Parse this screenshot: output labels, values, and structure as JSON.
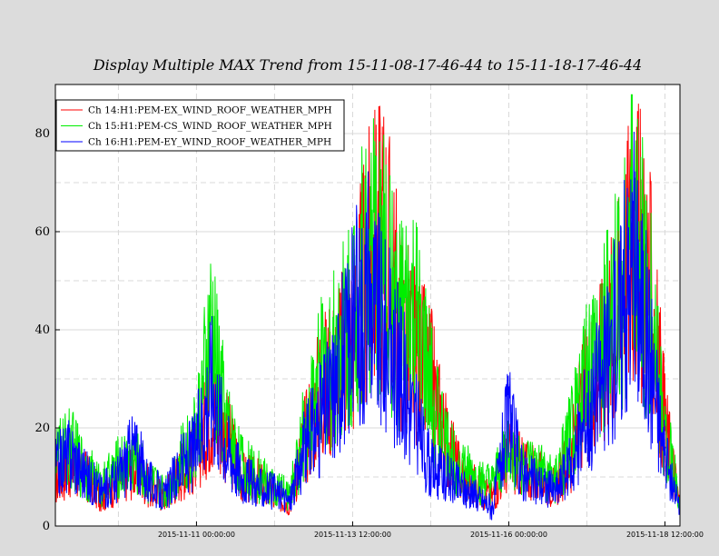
{
  "chart_data": {
    "type": "line",
    "title": "Display Multiple MAX Trend from 15-11-08-17-46-44 to 15-11-18-17-46-44",
    "xlabel": "",
    "ylabel": "",
    "x_ticks": [
      {
        "label": "2015-11-11 00:00:00",
        "hours": 54.22
      },
      {
        "label": "2015-11-13 12:00:00",
        "hours": 114.22
      },
      {
        "label": "2015-11-16 00:00:00",
        "hours": 174.22
      },
      {
        "label": "2015-11-18 12:00:00",
        "hours": 234.22
      }
    ],
    "xlim_hours": [
      0,
      240
    ],
    "y_ticks": [
      0,
      20,
      40,
      60,
      80
    ],
    "ylim": [
      0,
      90
    ],
    "grid": true,
    "legend_position": "top-left",
    "series": [
      {
        "name": "Ch 14:H1:PEM-EX_WIND_ROOF_WEATHER_MPH",
        "color": "#ff0000",
        "hours": [
          0,
          6,
          12,
          18,
          24,
          30,
          36,
          42,
          48,
          54,
          60,
          66,
          72,
          78,
          84,
          90,
          96,
          102,
          108,
          114,
          120,
          126,
          132,
          138,
          144,
          150,
          156,
          162,
          168,
          174,
          180,
          186,
          192,
          198,
          204,
          210,
          216,
          222,
          228,
          234,
          240
        ],
        "values": [
          9,
          12,
          10,
          6,
          9,
          12,
          8,
          6,
          11,
          14,
          24,
          18,
          10,
          9,
          6,
          5,
          18,
          28,
          32,
          38,
          52,
          60,
          42,
          35,
          30,
          18,
          10,
          8,
          6,
          14,
          12,
          10,
          8,
          14,
          28,
          34,
          44,
          60,
          50,
          22,
          4
        ]
      },
      {
        "name": "Ch 15:H1:PEM-CS_WIND_ROOF_WEATHER_MPH",
        "color": "#00ee00",
        "hours": [
          0,
          6,
          12,
          18,
          24,
          30,
          36,
          42,
          48,
          54,
          60,
          66,
          72,
          78,
          84,
          90,
          96,
          102,
          108,
          114,
          120,
          126,
          132,
          138,
          144,
          150,
          156,
          162,
          168,
          174,
          180,
          186,
          192,
          198,
          204,
          210,
          216,
          222,
          228,
          234,
          240
        ],
        "values": [
          14,
          16,
          11,
          8,
          12,
          14,
          9,
          7,
          13,
          18,
          38,
          20,
          12,
          10,
          8,
          6,
          20,
          30,
          36,
          44,
          55,
          52,
          40,
          42,
          28,
          16,
          12,
          9,
          8,
          16,
          12,
          11,
          9,
          18,
          30,
          36,
          46,
          62,
          45,
          20,
          5
        ]
      },
      {
        "name": "Ch 16:H1:PEM-EY_WIND_ROOF_WEATHER_MPH",
        "color": "#0000ff",
        "hours": [
          0,
          6,
          12,
          18,
          24,
          30,
          36,
          42,
          48,
          54,
          60,
          66,
          72,
          78,
          84,
          90,
          96,
          102,
          108,
          114,
          120,
          126,
          132,
          138,
          144,
          150,
          156,
          162,
          168,
          174,
          180,
          186,
          192,
          198,
          204,
          210,
          216,
          222,
          228,
          234,
          240
        ],
        "values": [
          12,
          15,
          10,
          7,
          10,
          16,
          9,
          6,
          12,
          16,
          30,
          16,
          10,
          8,
          7,
          5,
          16,
          22,
          30,
          40,
          48,
          40,
          32,
          22,
          12,
          10,
          8,
          6,
          4,
          22,
          10,
          9,
          7,
          12,
          22,
          30,
          40,
          54,
          38,
          14,
          3
        ]
      }
    ]
  }
}
